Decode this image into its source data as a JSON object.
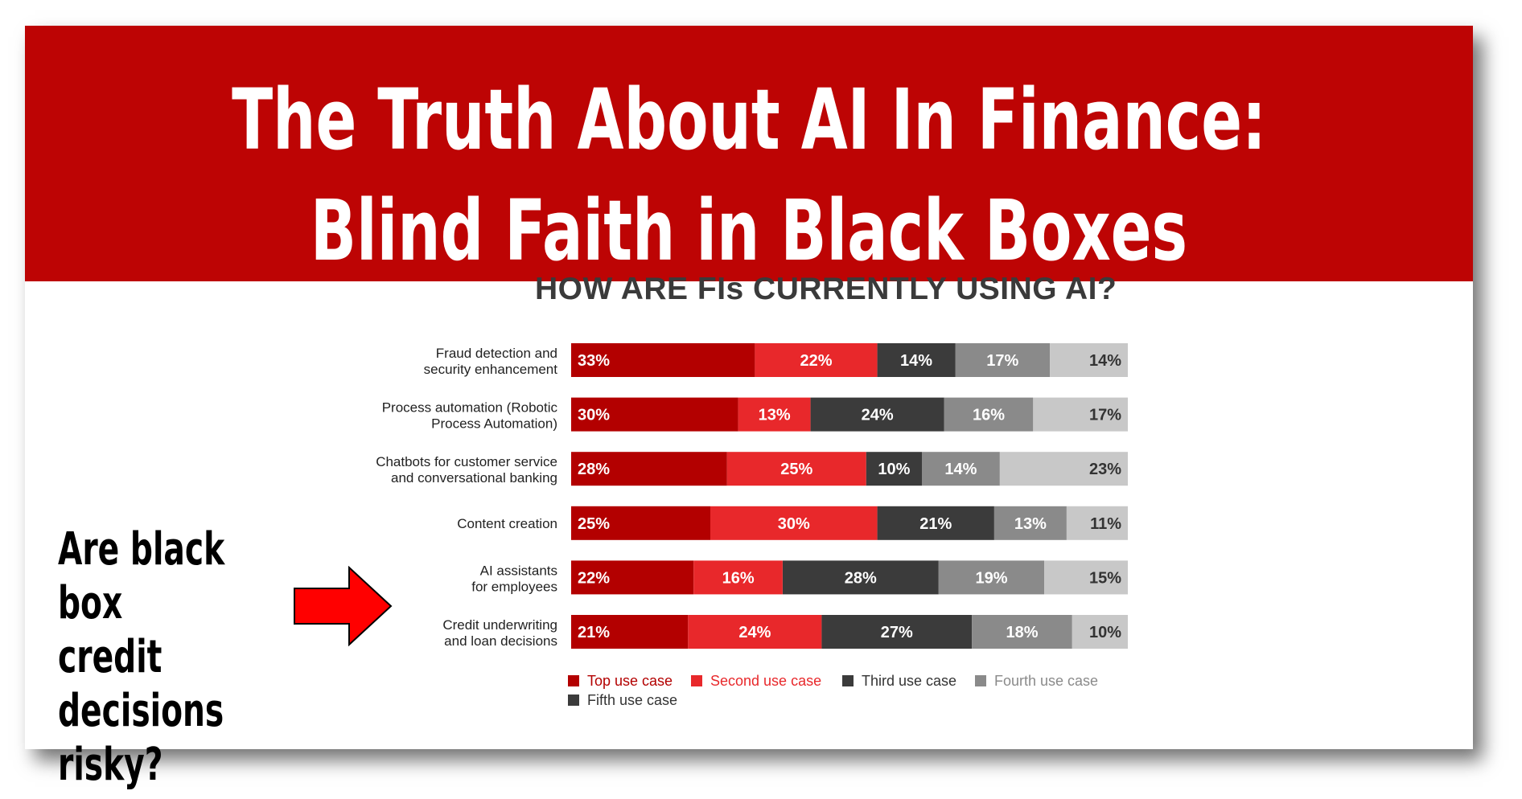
{
  "banner": {
    "line1": "The Truth About AI In Finance:",
    "line2": "Blind Faith in Black Boxes"
  },
  "callout": {
    "text": "Are black box\ncredit decisions\nrisky?",
    "arrow_icon": "right-arrow-icon"
  },
  "colors": {
    "banner": "#bd0404",
    "top": "#b30000",
    "second": "#e8282b",
    "third": "#3b3b3b",
    "fourth": "#8a8a8a",
    "fifth": "#c8c8c8",
    "arrow": "#ff0000"
  },
  "chart_data": {
    "type": "bar",
    "orientation": "horizontal",
    "stacked": true,
    "title": "HOW ARE FIs CURRENTLY USING AI?",
    "categories": [
      "Fraud  detection and\nsecurity enhancement",
      "Process automation (Robotic\nProcess  Automation)",
      "Chatbots for customer service\nand conversational banking",
      "Content creation",
      "AI assistants\nfor employees",
      "Credit underwriting\nand loan decisions"
    ],
    "series": [
      {
        "name": "Top use case",
        "color": "#b30000",
        "values": [
          33,
          30,
          28,
          25,
          22,
          21
        ]
      },
      {
        "name": "Second use case",
        "color": "#e8282b",
        "values": [
          22,
          13,
          25,
          30,
          16,
          24
        ]
      },
      {
        "name": "Third use case",
        "color": "#3b3b3b",
        "values": [
          14,
          24,
          10,
          21,
          28,
          27
        ]
      },
      {
        "name": "Fourth use case",
        "color": "#8a8a8a",
        "values": [
          17,
          16,
          14,
          13,
          19,
          18
        ]
      },
      {
        "name": "Fifth use case",
        "color": "#c8c8c8",
        "values": [
          14,
          17,
          23,
          11,
          15,
          10
        ]
      }
    ],
    "value_suffix": "%",
    "xlim": [
      0,
      100
    ],
    "legend_position": "bottom",
    "grid": false
  }
}
